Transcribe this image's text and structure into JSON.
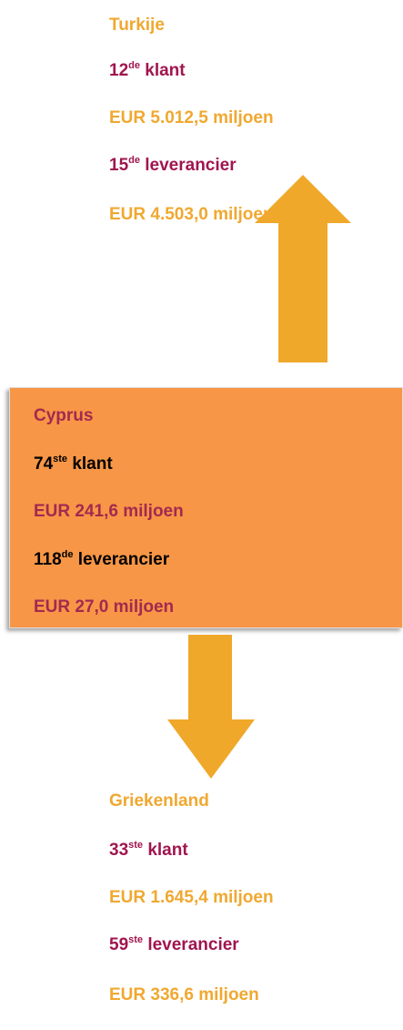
{
  "blocks": [
    {
      "country": "Turkije",
      "client": {
        "rank": "12",
        "suffix": "de",
        "label": "klant"
      },
      "client_value": "EUR 5.012,5 miljoen",
      "supplier": {
        "rank": "15",
        "suffix": "de",
        "label": "leverancier"
      },
      "supplier_value": "EUR 4.503,0 miljoen"
    },
    {
      "country": "Cyprus",
      "client": {
        "rank": "74",
        "suffix": "ste",
        "label": "klant"
      },
      "client_value": "EUR 241,6 miljoen",
      "supplier": {
        "rank": "118",
        "suffix": "de",
        "label": "leverancier"
      },
      "supplier_value": "EUR 27,0 miljoen"
    },
    {
      "country": "Griekenland",
      "client": {
        "rank": "33",
        "suffix": "ste",
        "label": "klant"
      },
      "client_value": "EUR 1.645,4 miljoen",
      "supplier": {
        "rank": "59",
        "suffix": "ste",
        "label": "leverancier"
      },
      "supplier_value": "EUR 336,6 miljoen"
    }
  ]
}
